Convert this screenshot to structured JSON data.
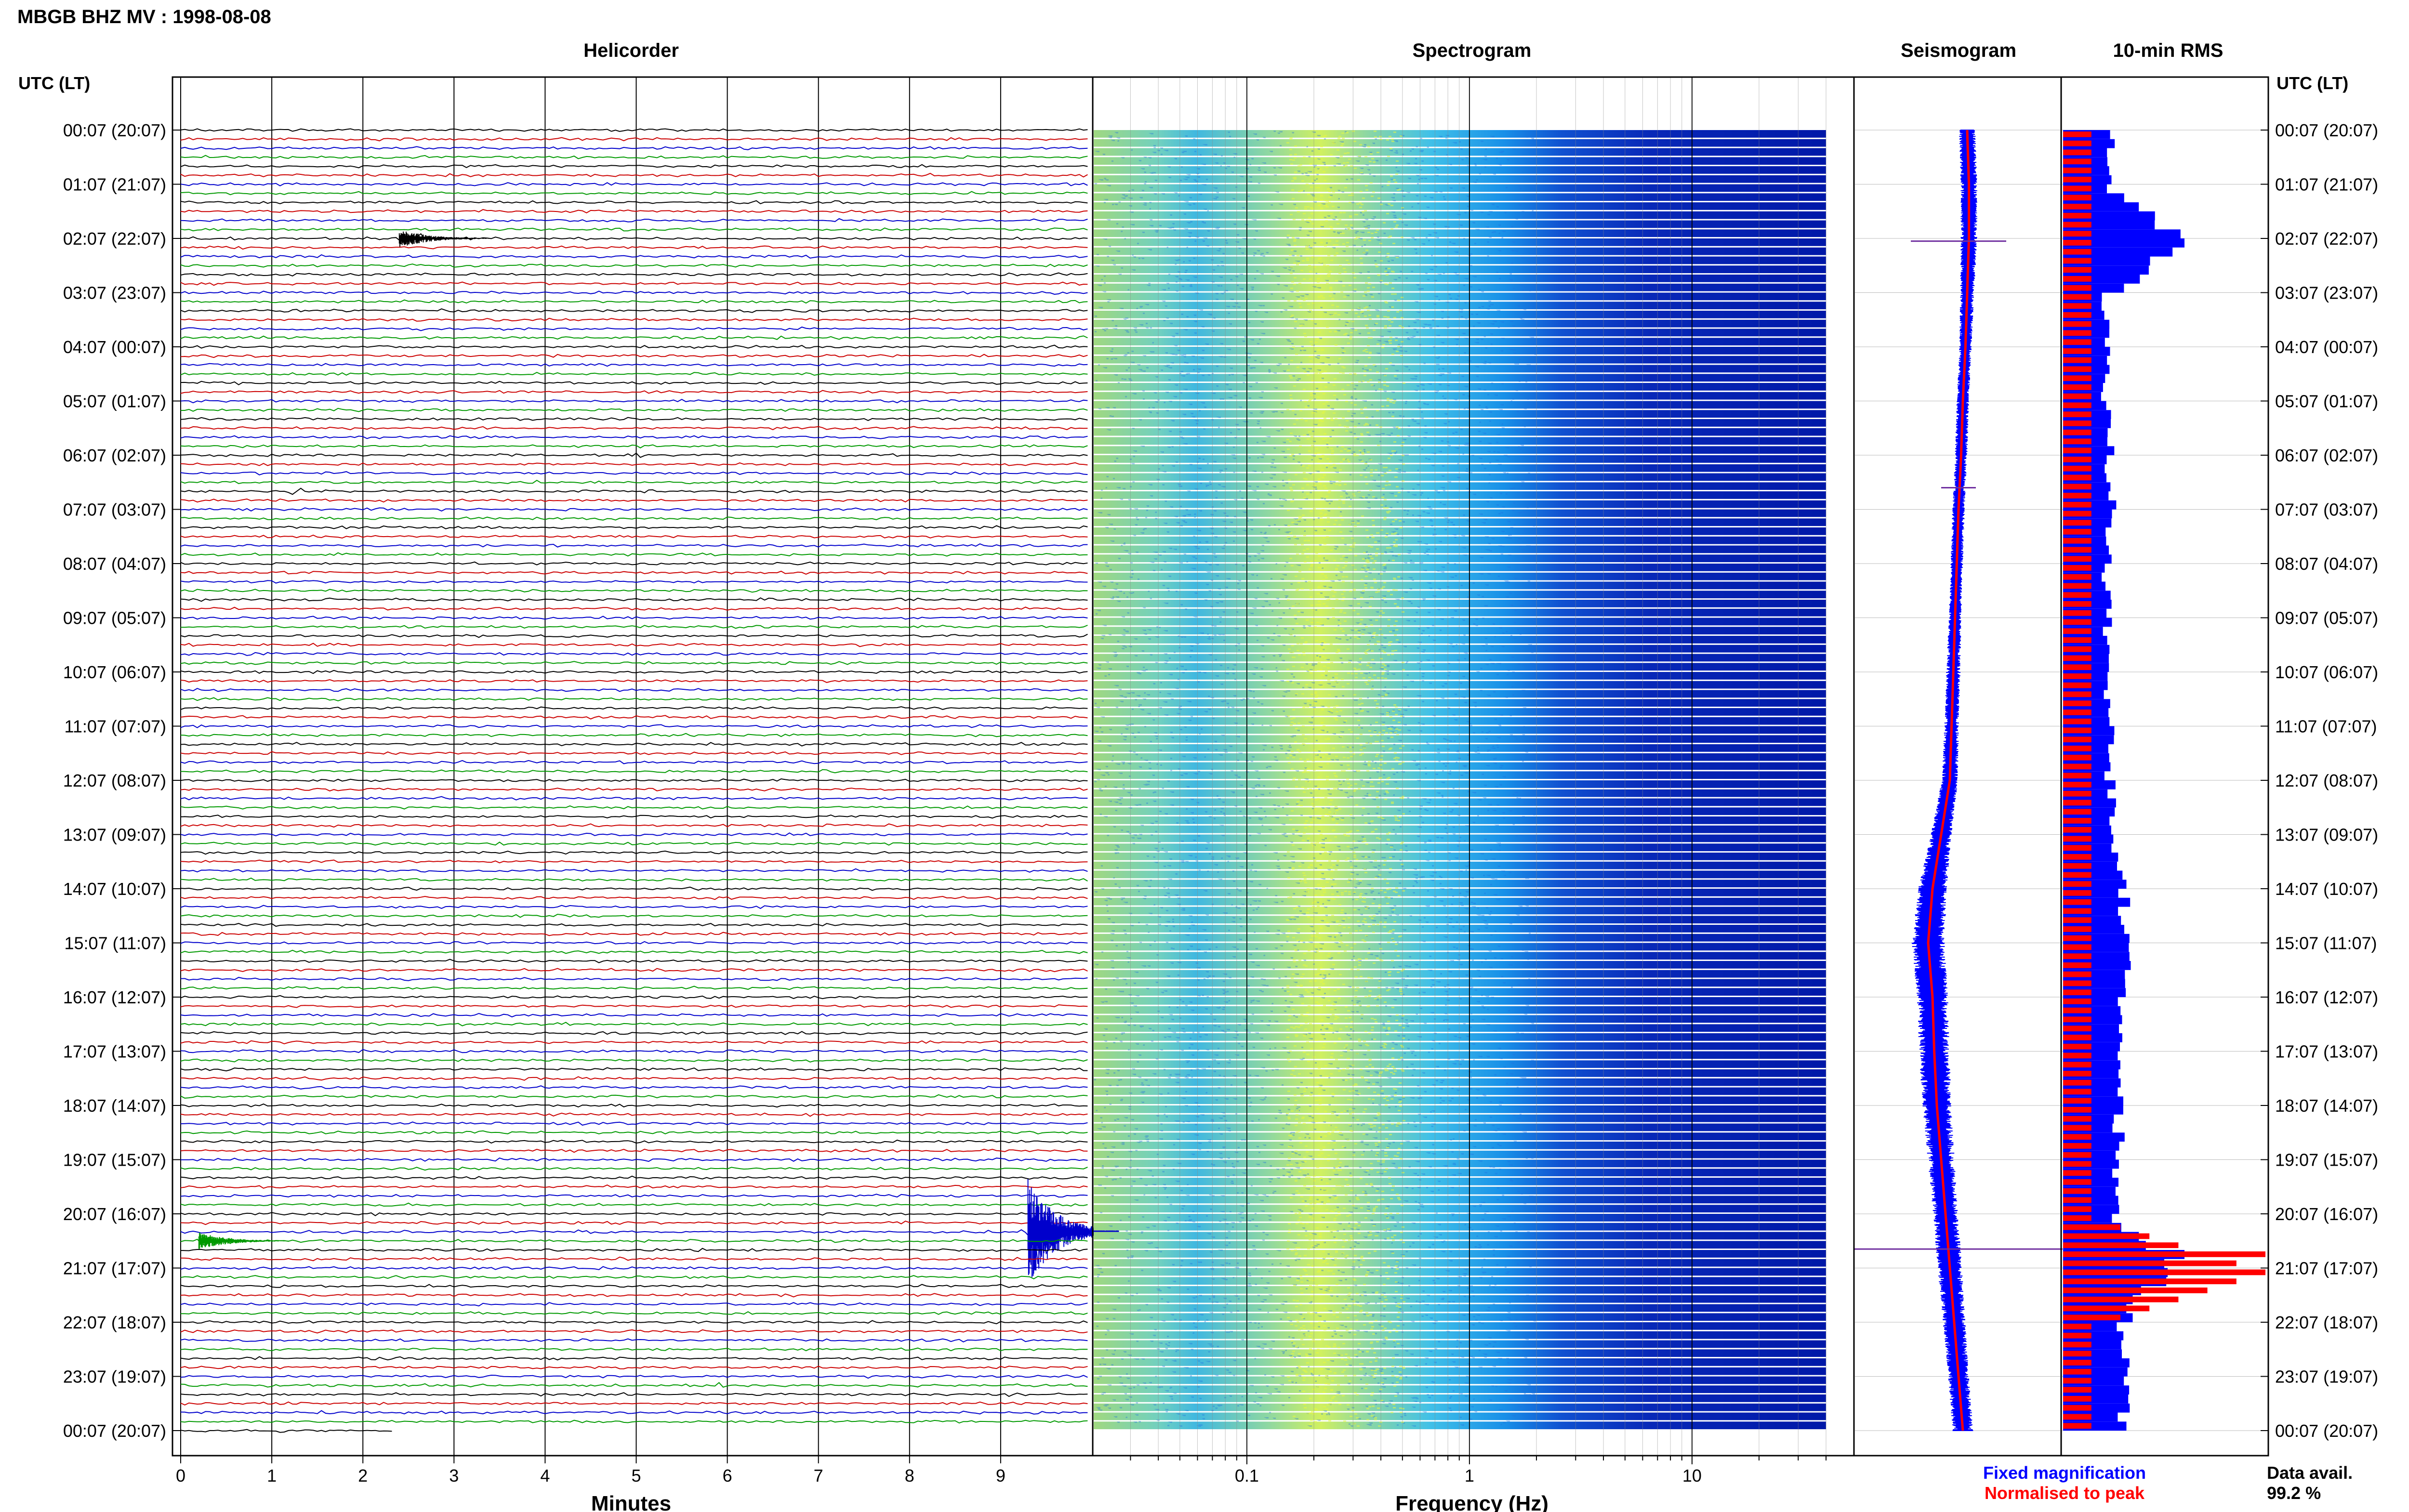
{
  "title": "MBGB BHZ MV : 1998-08-08",
  "panels": {
    "helicorder": "Helicorder",
    "spectrogram": "Spectrogram",
    "seismogram": "Seismogram",
    "rms": "10-min RMS"
  },
  "time_axis_label_left": "UTC (LT)",
  "time_axis_label_right": "UTC (LT)",
  "legend": {
    "fixed": "Fixed magnification",
    "normalised": "Normalised to peak",
    "fixed_color": "#0000ff",
    "normalised_color": "#ff0000"
  },
  "data_availability": {
    "label": "Data avail.",
    "value": "99.2 %"
  },
  "colors": {
    "trace_cycle": [
      "#000000",
      "#cc0000",
      "#0000cc",
      "#009900"
    ],
    "spectrogram_high": "#c8f050",
    "spectrogram_low": "#0000b4"
  },
  "chart_data": [
    {
      "type": "line",
      "panel": "Helicorder",
      "xlabel": "Minutes",
      "xlim": [
        0,
        10
      ],
      "xticks": [
        "0",
        "1",
        "2",
        "3",
        "4",
        "5",
        "6",
        "7",
        "8",
        "9"
      ],
      "ylabel": "UTC (LT)",
      "row_count": 144,
      "row_minutes": 10,
      "time_labels": [
        "00:07 (20:07)",
        "01:07 (21:07)",
        "02:07 (22:07)",
        "03:07 (23:07)",
        "04:07 (00:07)",
        "05:07 (01:07)",
        "06:07 (02:07)",
        "07:07 (03:07)",
        "08:07 (04:07)",
        "09:07 (05:07)",
        "10:07 (06:07)",
        "11:07 (07:07)",
        "12:07 (08:07)",
        "13:07 (09:07)",
        "14:07 (10:07)",
        "15:07 (11:07)",
        "16:07 (12:07)",
        "17:07 (13:07)",
        "18:07 (14:07)",
        "19:07 (15:07)",
        "20:07 (16:07)",
        "21:07 (17:07)",
        "22:07 (18:07)",
        "23:07 (19:07)",
        "00:07 (20:07)"
      ],
      "events": [
        {
          "time": "01:47",
          "minute": 7.1,
          "amplitude": 0.3
        },
        {
          "time": "01:47",
          "minute": 9.3,
          "amplitude": 0.2
        },
        {
          "time": "02:07",
          "minute": 2.4,
          "amplitude": 1.4
        },
        {
          "time": "02:07",
          "minute": 0.5,
          "amplitude": 0.2
        },
        {
          "time": "06:07",
          "minute": 5.0,
          "amplitude": 0.3
        },
        {
          "time": "06:47",
          "minute": 1.2,
          "amplitude": 0.8
        },
        {
          "time": "20:27",
          "minute": 9.3,
          "amplitude": 8.0
        },
        {
          "time": "20:37",
          "minute": 0.2,
          "amplitude": 1.3
        },
        {
          "time": "21:07",
          "minute": 0.8,
          "amplitude": 0.5
        },
        {
          "time": "23:17",
          "minute": 5.8,
          "amplitude": 0.5
        },
        {
          "time": "23:47",
          "minute": 1.4,
          "amplitude": 0.5
        }
      ],
      "last_row_end_minute": 2.3
    },
    {
      "type": "heatmap",
      "panel": "Spectrogram",
      "xlabel": "Frequency (Hz)",
      "xscale": "log",
      "xlim": [
        0.02,
        40
      ],
      "xticks": [
        "0.1",
        "1",
        "10"
      ],
      "peak_band_hz": [
        0.15,
        0.4
      ],
      "noise_rolloff_hz": 2,
      "rows": 144
    },
    {
      "type": "line",
      "panel": "Seismogram",
      "series": [
        {
          "name": "Fixed magnification",
          "color": "#0000ff"
        },
        {
          "name": "Normalised to peak",
          "color": "#ff0000"
        }
      ],
      "hours": [
        0,
        1,
        2,
        3,
        4,
        5,
        6,
        7,
        8,
        9,
        10,
        11,
        12,
        13,
        14,
        15,
        16,
        17,
        18,
        19,
        20,
        21,
        22,
        23,
        24
      ],
      "center_offset": [
        0.1,
        0.12,
        0.12,
        0.1,
        0.08,
        0.05,
        0.03,
        0.0,
        -0.02,
        -0.04,
        -0.06,
        -0.08,
        -0.1,
        -0.2,
        -0.3,
        -0.35,
        -0.3,
        -0.28,
        -0.25,
        -0.2,
        -0.15,
        -0.1,
        -0.05,
        0.0,
        0.05
      ],
      "width": [
        0.08,
        0.08,
        0.08,
        0.07,
        0.06,
        0.06,
        0.06,
        0.06,
        0.06,
        0.06,
        0.07,
        0.07,
        0.08,
        0.1,
        0.14,
        0.16,
        0.15,
        0.15,
        0.14,
        0.13,
        0.12,
        0.12,
        0.11,
        0.1,
        0.1
      ]
    },
    {
      "type": "bar",
      "panel": "10-min RMS",
      "orientation": "horizontal",
      "series": [
        {
          "name": "Fixed magnification",
          "color": "#0000ff"
        },
        {
          "name": "Normalised to peak",
          "color": "#ff0000"
        }
      ],
      "hours": [
        0,
        1,
        2,
        3,
        4,
        5,
        6,
        7,
        8,
        9,
        10,
        11,
        12,
        13,
        14,
        15,
        16,
        17,
        18,
        19,
        20,
        21,
        22,
        23,
        24
      ],
      "rms_fixed": [
        0.24,
        0.24,
        0.6,
        0.22,
        0.22,
        0.22,
        0.24,
        0.24,
        0.22,
        0.22,
        0.22,
        0.24,
        0.24,
        0.26,
        0.3,
        0.32,
        0.3,
        0.3,
        0.28,
        0.28,
        0.28,
        0.5,
        0.3,
        0.32,
        0.3
      ],
      "rms_normalised": [
        0.14,
        0.14,
        0.14,
        0.14,
        0.14,
        0.14,
        0.14,
        0.14,
        0.14,
        0.14,
        0.14,
        0.14,
        0.14,
        0.14,
        0.14,
        0.14,
        0.14,
        0.14,
        0.14,
        0.14,
        0.14,
        1.0,
        0.14,
        0.14,
        0.14
      ]
    }
  ]
}
